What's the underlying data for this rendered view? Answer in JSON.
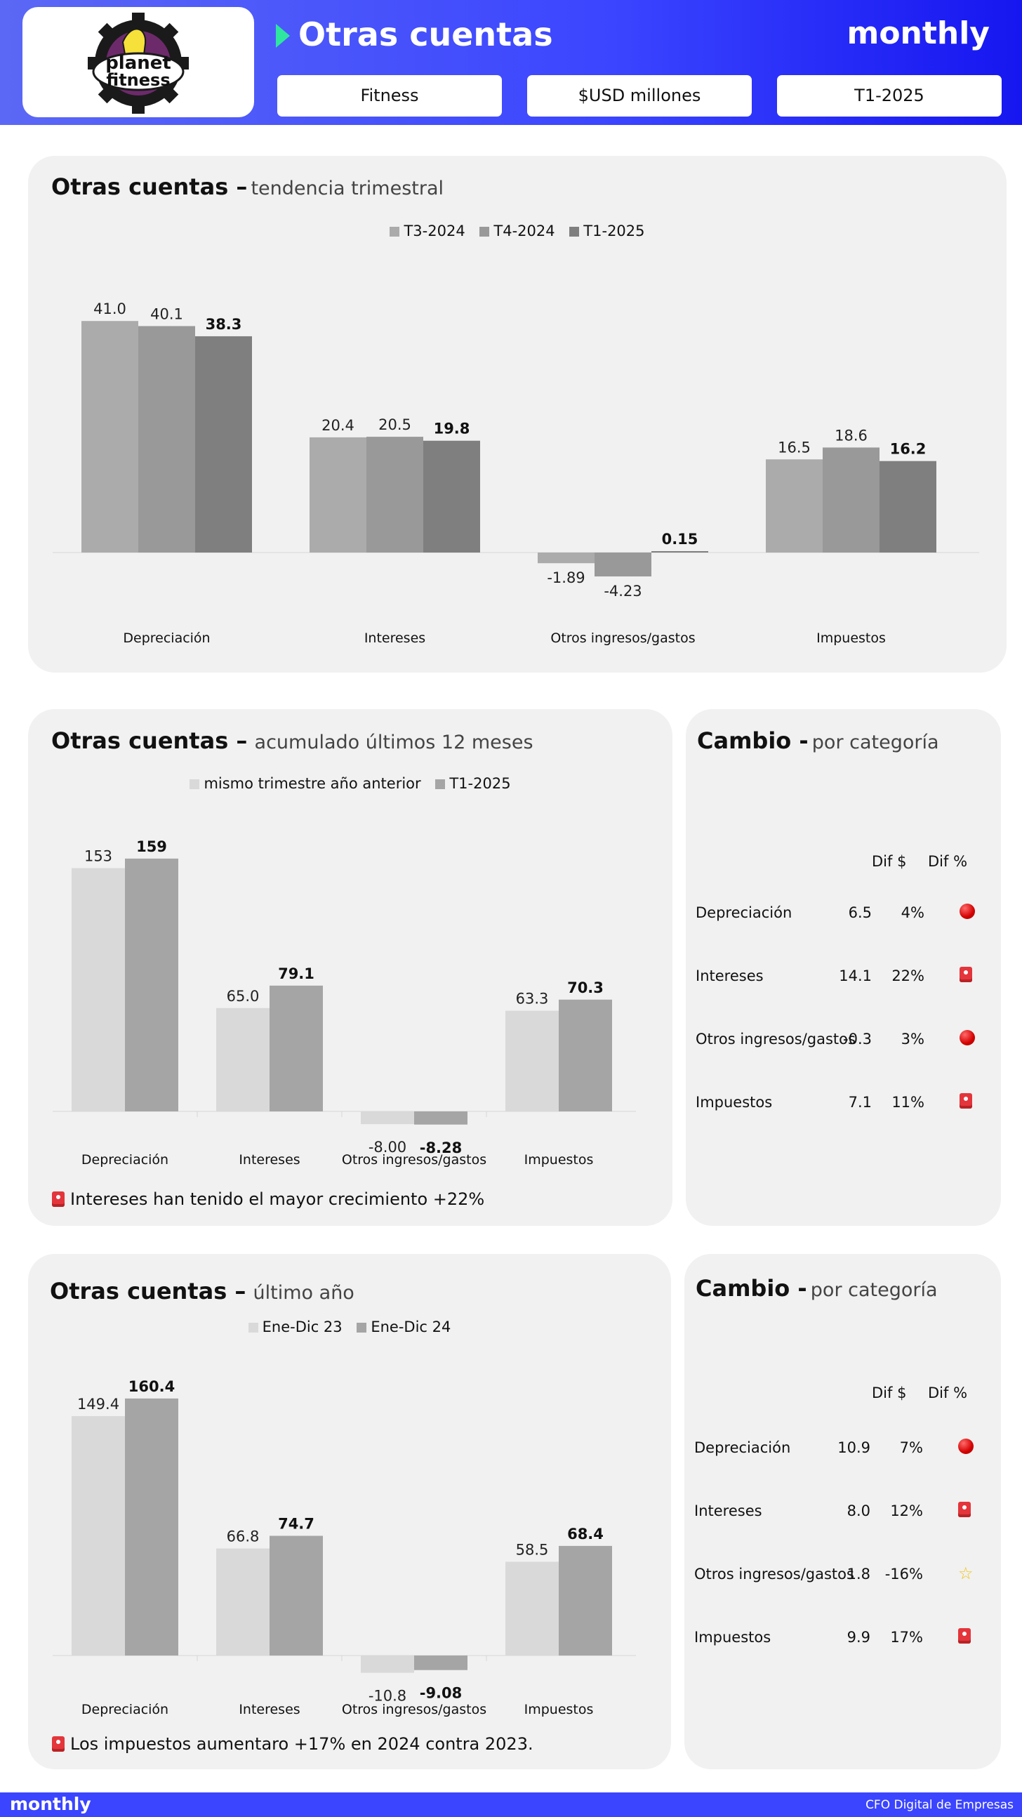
{
  "header": {
    "title": "Otras cuentas",
    "brand": "monthly",
    "logo_text_1": "planet",
    "logo_text_2": "fitness",
    "filters": [
      "Fitness",
      "$USD millones",
      "T1-2025"
    ]
  },
  "colors": {
    "header_from": "#5b68f5",
    "header_to": "#1616f0",
    "accent": "#2ee6a0",
    "card_bg": "#f1f1f1",
    "s1": "#ababab",
    "s2": "#999999",
    "s3": "#7f7f7f",
    "light": "#d9d9d9",
    "mid": "#a5a5a5"
  },
  "card1": {
    "title": "Otras cuentas –",
    "subtitle": "tendencia trimestral"
  },
  "card2": {
    "title": "Otras cuentas –",
    "subtitle": "acumulado últimos 12 meses",
    "note": "Intereses han tenido el mayor crecimiento +22%"
  },
  "card3": {
    "title": "Otras cuentas –",
    "subtitle": "último año",
    "note": "Los impuestos aumentaro +17% en 2024 contra 2023."
  },
  "chart_data": [
    {
      "type": "bar",
      "title": "Otras cuentas – tendencia trimestral",
      "categories": [
        "Depreciación",
        "Intereses",
        "Otros ingresos/gastos",
        "Impuestos"
      ],
      "series": [
        {
          "name": "T3-2024",
          "values": [
            41.0,
            20.4,
            -1.89,
            16.5
          ],
          "labels": [
            "41.0",
            "20.4",
            "-1.89",
            "16.5"
          ]
        },
        {
          "name": "T4-2024",
          "values": [
            40.1,
            20.5,
            -4.23,
            18.6
          ],
          "labels": [
            "40.1",
            "20.5",
            "-4.23",
            "18.6"
          ]
        },
        {
          "name": "T1-2025",
          "values": [
            38.3,
            19.8,
            0.15,
            16.2
          ],
          "labels": [
            "38.3",
            "19.8",
            "0.15",
            "16.2"
          ]
        }
      ],
      "ylim": [
        -6,
        46
      ],
      "grid": false,
      "legend": "top"
    },
    {
      "type": "bar",
      "title": "Otras cuentas – acumulado últimos 12 meses",
      "categories": [
        "Depreciación",
        "Intereses",
        "Otros ingresos/gastos",
        "Impuestos"
      ],
      "series": [
        {
          "name": "mismo trimestre año anterior",
          "values": [
            153,
            65.0,
            -8.0,
            63.3
          ],
          "labels": [
            "153",
            "65.0",
            "-8.00",
            "63.3"
          ]
        },
        {
          "name": "T1-2025",
          "values": [
            159,
            79.1,
            -8.28,
            70.3
          ],
          "labels": [
            "159",
            "79.1",
            "-8.28",
            "70.3"
          ]
        }
      ],
      "ylim": [
        -12,
        170
      ],
      "grid": false,
      "legend": "top"
    },
    {
      "type": "bar",
      "title": "Otras cuentas – último año",
      "categories": [
        "Depreciación",
        "Intereses",
        "Otros ingresos/gastos",
        "Impuestos"
      ],
      "series": [
        {
          "name": "Ene-Dic 23",
          "values": [
            149.4,
            66.8,
            -10.8,
            58.5
          ],
          "labels": [
            "149.4",
            "66.8",
            "-10.8",
            "58.5"
          ]
        },
        {
          "name": "Ene-Dic 24",
          "values": [
            160.4,
            74.7,
            -9.08,
            68.4
          ],
          "labels": [
            "160.4",
            "74.7",
            "-9.08",
            "68.4"
          ]
        }
      ],
      "ylim": [
        -12,
        170
      ],
      "grid": false,
      "legend": "top"
    }
  ],
  "change1": {
    "title": "Cambio -",
    "subtitle": "por categoría",
    "col1": "Dif $",
    "col2": "Dif %",
    "rows": [
      {
        "cat": "Depreciación",
        "d": "6.5",
        "p": "4%",
        "icon": "red-dot"
      },
      {
        "cat": "Intereses",
        "d": "14.1",
        "p": "22%",
        "icon": "red-flag"
      },
      {
        "cat": "Otros ingresos/gastos",
        "d": "-0.3",
        "p": "3%",
        "icon": "red-dot"
      },
      {
        "cat": "Impuestos",
        "d": "7.1",
        "p": "11%",
        "icon": "red-flag"
      }
    ]
  },
  "change2": {
    "title": "Cambio -",
    "subtitle": "por categoría",
    "col1": "Dif $",
    "col2": "Dif %",
    "rows": [
      {
        "cat": "Depreciación",
        "d": "10.9",
        "p": "7%",
        "icon": "red-dot"
      },
      {
        "cat": "Intereses",
        "d": "8.0",
        "p": "12%",
        "icon": "red-flag"
      },
      {
        "cat": "Otros ingresos/gastos",
        "d": "1.8",
        "p": "-16%",
        "icon": "star"
      },
      {
        "cat": "Impuestos",
        "d": "9.9",
        "p": "17%",
        "icon": "red-flag"
      }
    ]
  },
  "footer": {
    "brand": "monthly",
    "right": "CFO Digital de Empresas"
  }
}
